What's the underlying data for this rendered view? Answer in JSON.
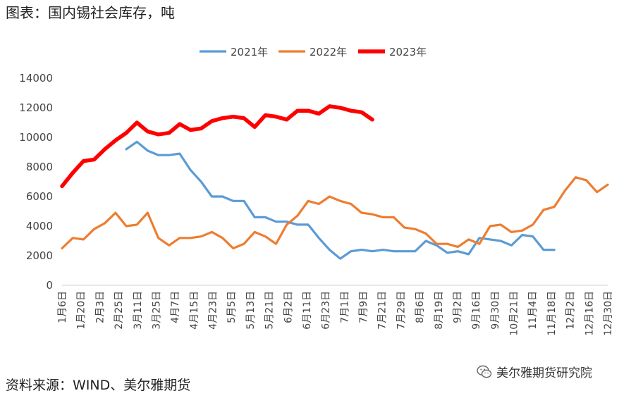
{
  "header": {
    "title": "图表：国内锡社会库存，吨"
  },
  "footer": {
    "source": "资料来源：WIND、美尔雅期货",
    "watermark": "美尔雅期货研究院"
  },
  "chart_data": {
    "type": "line",
    "title": "",
    "xlabel": "",
    "ylabel": "",
    "ylim": [
      0,
      14000
    ],
    "yticks": [
      0,
      2000,
      4000,
      6000,
      8000,
      10000,
      12000,
      14000
    ],
    "legend_position": "top-center",
    "grid": false,
    "x_tick_labels": [
      "1月6日",
      "1月20日",
      "2月3日",
      "2月25日",
      "3月11日",
      "3月25日",
      "4月7日",
      "4月15日",
      "4月23日",
      "5月5日",
      "5月13日",
      "5月21日",
      "6月2日",
      "6月11日",
      "6月23日",
      "7月1日",
      "7月9日",
      "7月21日",
      "7月29日",
      "8月6日",
      "8月19日",
      "9月2日",
      "9月16日",
      "9月30日",
      "10月21日",
      "11月4日",
      "11月18日",
      "12月2日",
      "12月16日",
      "12月30日"
    ],
    "series": [
      {
        "name": "2021年",
        "color": "#5B9BD5",
        "width": 3.2,
        "start_index": 6,
        "values": [
          9200,
          9700,
          9100,
          8800,
          8800,
          8900,
          7800,
          7000,
          6000,
          6000,
          5700,
          5700,
          4600,
          4600,
          4300,
          4300,
          4100,
          4100,
          3200,
          2400,
          1800,
          2300,
          2400,
          2300,
          2400,
          2300,
          2300,
          2300,
          3000,
          2700,
          2200,
          2300,
          2100,
          3200,
          3100,
          3000,
          2700,
          3400,
          3300,
          2400,
          2400
        ]
      },
      {
        "name": "2022年",
        "color": "#ED7D31",
        "width": 3.2,
        "start_index": 0,
        "values": [
          2500,
          3200,
          3100,
          3800,
          4200,
          4900,
          4000,
          4100,
          4900,
          3200,
          2700,
          3200,
          3200,
          3300,
          3600,
          3200,
          2500,
          2800,
          3600,
          3300,
          2800,
          4100,
          4700,
          5700,
          5500,
          6000,
          5700,
          5500,
          4900,
          4800,
          4600,
          4600,
          3900,
          3800,
          3500,
          2800,
          2800,
          2600,
          3100,
          2800,
          4000,
          4100,
          3600,
          3700,
          4100,
          5100,
          5300,
          6400,
          7300,
          7100,
          6300,
          6800
        ]
      },
      {
        "name": "2023年",
        "color": "#FF0000",
        "width": 5.5,
        "start_index": 0,
        "values": [
          6700,
          7600,
          8400,
          8500,
          9200,
          9800,
          10300,
          11000,
          10400,
          10200,
          10300,
          10900,
          10500,
          10600,
          11100,
          11300,
          11400,
          11300,
          10700,
          11500,
          11400,
          11200,
          11800,
          11800,
          11600,
          12100,
          12000,
          11800,
          11700,
          11200
        ]
      }
    ]
  }
}
